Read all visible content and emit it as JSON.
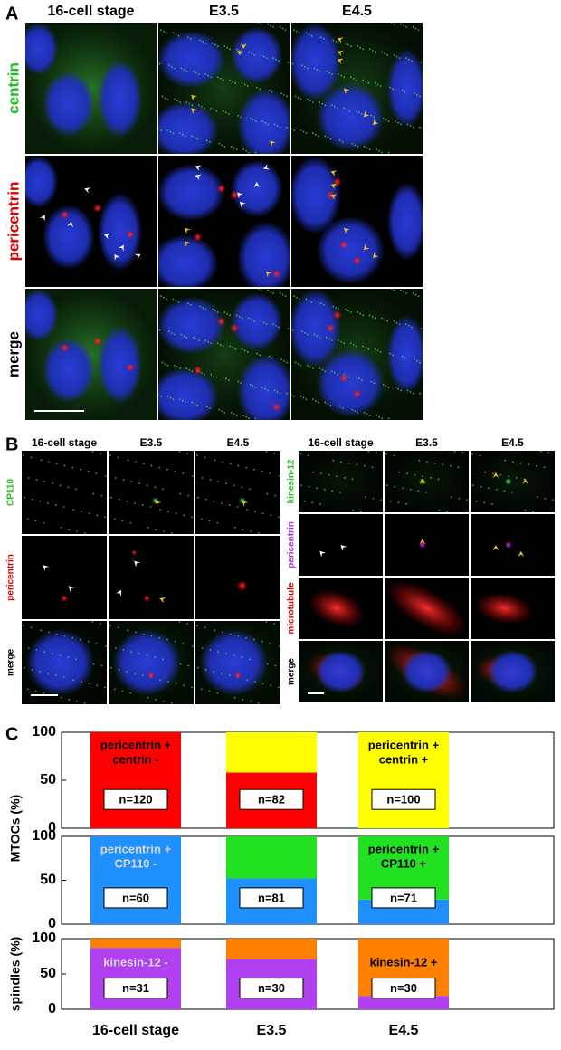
{
  "panel_a": {
    "label": "A",
    "columns": [
      "16-cell stage",
      "E3.5",
      "E4.5"
    ],
    "rows": [
      "centrin",
      "pericentrin",
      "merge"
    ]
  },
  "panel_b": {
    "label": "B",
    "left": {
      "columns": [
        "16-cell stage",
        "E3.5",
        "E4.5"
      ],
      "rows": [
        "CP110",
        "pericentrin",
        "merge"
      ]
    },
    "right": {
      "columns": [
        "16-cell stage",
        "E3.5",
        "E4.5"
      ],
      "rows": [
        "kinesin-12",
        "pericentrin",
        "microtubule",
        "merge"
      ]
    }
  },
  "panel_c": {
    "label": "C"
  },
  "chart_data": [
    {
      "type": "bar",
      "stacked": true,
      "ylabel": "MTOCs (%)",
      "categories": [
        null,
        null,
        null
      ],
      "series": [
        {
          "color": "#ff0000",
          "values": [
            100,
            58,
            0
          ]
        },
        {
          "color": "#ffff00",
          "values": [
            0,
            42,
            100
          ]
        }
      ],
      "ylim": [
        0,
        100
      ],
      "yticks": [
        0,
        50,
        100
      ],
      "annotations": [
        [
          "pericentrin +",
          "centrin -"
        ],
        null,
        [
          "pericentrin +",
          "centrin +"
        ]
      ],
      "annotation_colors": [
        "#000000",
        null,
        "#000000"
      ],
      "n_labels": [
        "n=120",
        "n=82",
        "n=100"
      ]
    },
    {
      "type": "bar",
      "stacked": true,
      "categories": [
        null,
        null,
        null
      ],
      "series": [
        {
          "color": "#1e90ff",
          "values": [
            100,
            52,
            28
          ]
        },
        {
          "color": "#22e022",
          "values": [
            0,
            48,
            72
          ]
        }
      ],
      "ylim": [
        0,
        100
      ],
      "yticks": [
        0,
        50,
        100
      ],
      "annotations": [
        [
          "pericentrin +",
          "CP110 -"
        ],
        null,
        [
          "pericentrin +",
          "CP110 +"
        ]
      ],
      "annotation_colors": [
        "#d8d8d8",
        null,
        "#000000"
      ],
      "n_labels": [
        "n=60",
        "n=81",
        "n=71"
      ]
    },
    {
      "type": "bar",
      "stacked": true,
      "ylabel": "spindles (%)",
      "categories": [
        "16-cell stage",
        "E3.5",
        "E4.5"
      ],
      "series": [
        {
          "color": "#b040f0",
          "values": [
            87,
            71,
            19
          ]
        },
        {
          "color": "#ff8000",
          "values": [
            13,
            29,
            81
          ]
        }
      ],
      "ylim": [
        0,
        100
      ],
      "yticks": [
        0,
        50,
        100
      ],
      "annotations": [
        [
          "kinesin-12 -"
        ],
        null,
        [
          "kinesin-12 +"
        ]
      ],
      "annotation_colors": [
        "#d8d8d8",
        null,
        "#000000"
      ],
      "n_labels": [
        "n=31",
        "n=30",
        "n=30"
      ]
    }
  ]
}
